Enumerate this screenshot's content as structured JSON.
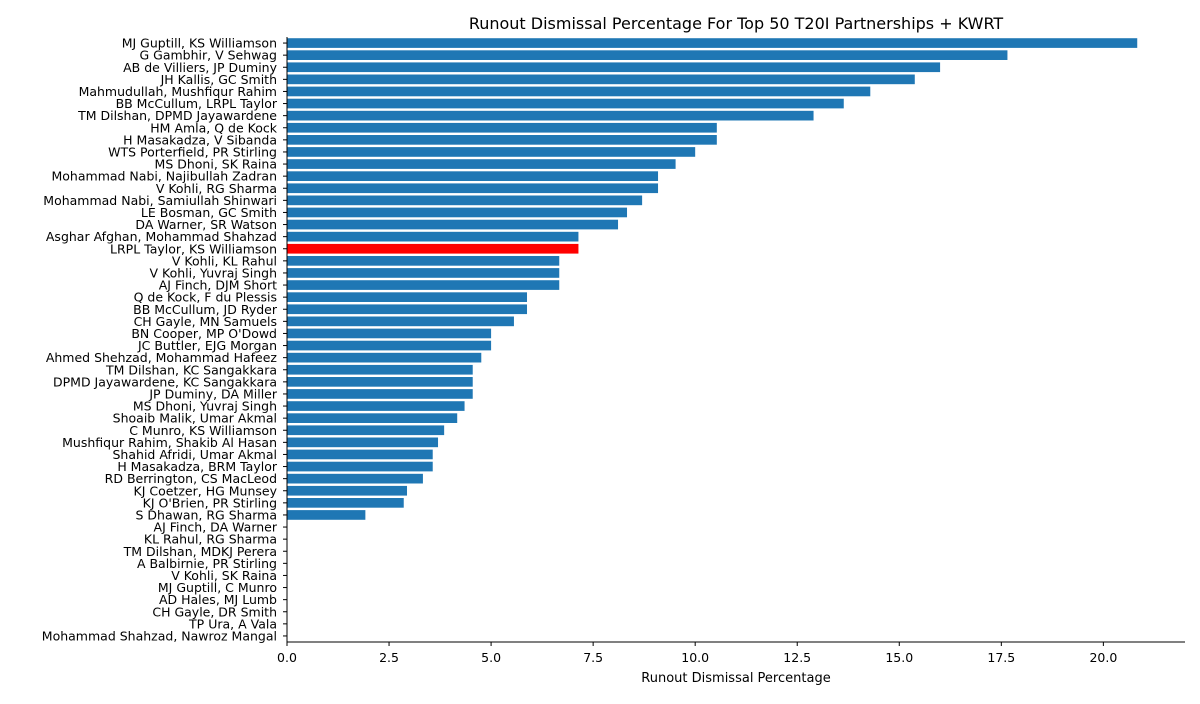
{
  "chart_data": {
    "type": "bar",
    "orientation": "horizontal",
    "title": "Runout Dismissal Percentage For Top 50 T20I Partnerships + KWRT",
    "xlabel": "Runout Dismissal Percentage",
    "ylabel": "",
    "xlim": [
      0,
      22
    ],
    "xticks": [
      0.0,
      2.5,
      5.0,
      7.5,
      10.0,
      12.5,
      15.0,
      17.5,
      20.0
    ],
    "xtick_labels": [
      "0.0",
      "2.5",
      "5.0",
      "7.5",
      "10.0",
      "12.5",
      "15.0",
      "17.5",
      "20.0"
    ],
    "grid": false,
    "colors": {
      "default": "#1f77b4",
      "highlight": "#ff0000"
    },
    "highlight_category": "LRPL Taylor, KS Williamson",
    "categories": [
      "MJ Guptill, KS Williamson",
      "G Gambhir, V Sehwag",
      "AB de Villiers, JP Duminy",
      "JH Kallis, GC Smith",
      "Mahmudullah, Mushfiqur Rahim",
      "BB McCullum, LRPL Taylor",
      "TM Dilshan, DPMD Jayawardene",
      "HM Amla, Q de Kock",
      "H Masakadza, V Sibanda",
      "WTS Porterfield, PR Stirling",
      "MS Dhoni, SK Raina",
      "Mohammad Nabi, Najibullah Zadran",
      "V Kohli, RG Sharma",
      "Mohammad Nabi, Samiullah Shinwari",
      "LE Bosman, GC Smith",
      "DA Warner, SR Watson",
      "Asghar Afghan, Mohammad Shahzad",
      "LRPL Taylor, KS Williamson",
      "V Kohli, KL Rahul",
      "V Kohli, Yuvraj Singh",
      "AJ Finch, DJM Short",
      "Q de Kock, F du Plessis",
      "BB McCullum, JD Ryder",
      "CH Gayle, MN Samuels",
      "BN Cooper, MP O'Dowd",
      "JC Buttler, EJG Morgan",
      "Ahmed Shehzad, Mohammad Hafeez",
      "TM Dilshan, KC Sangakkara",
      "DPMD Jayawardene, KC Sangakkara",
      "JP Duminy, DA Miller",
      "MS Dhoni, Yuvraj Singh",
      "Shoaib Malik, Umar Akmal",
      "C Munro, KS Williamson",
      "Mushfiqur Rahim, Shakib Al Hasan",
      "Shahid Afridi, Umar Akmal",
      "H Masakadza, BRM Taylor",
      "RD Berrington, CS MacLeod",
      "KJ Coetzer, HG Munsey",
      "KJ O'Brien, PR Stirling",
      "S Dhawan, RG Sharma",
      "AJ Finch, DA Warner",
      "KL Rahul, RG Sharma",
      "TM Dilshan, MDKJ Perera",
      "A Balbirnie, PR Stirling",
      "V Kohli, SK Raina",
      "MJ Guptill, C Munro",
      "AD Hales, MJ Lumb",
      "CH Gayle, DR Smith",
      "TP Ura, A Vala",
      "Mohammad Shahzad, Nawroz Mangal"
    ],
    "values": [
      20.83,
      17.65,
      16.0,
      15.38,
      14.29,
      13.64,
      12.9,
      10.53,
      10.53,
      10.0,
      9.52,
      9.09,
      9.09,
      8.7,
      8.33,
      8.11,
      7.14,
      7.14,
      6.67,
      6.67,
      6.67,
      5.88,
      5.88,
      5.56,
      5.0,
      5.0,
      4.76,
      4.55,
      4.55,
      4.55,
      4.35,
      4.17,
      3.85,
      3.7,
      3.57,
      3.57,
      3.33,
      2.94,
      2.86,
      1.92,
      0,
      0,
      0,
      0,
      0,
      0,
      0,
      0,
      0,
      0
    ]
  }
}
